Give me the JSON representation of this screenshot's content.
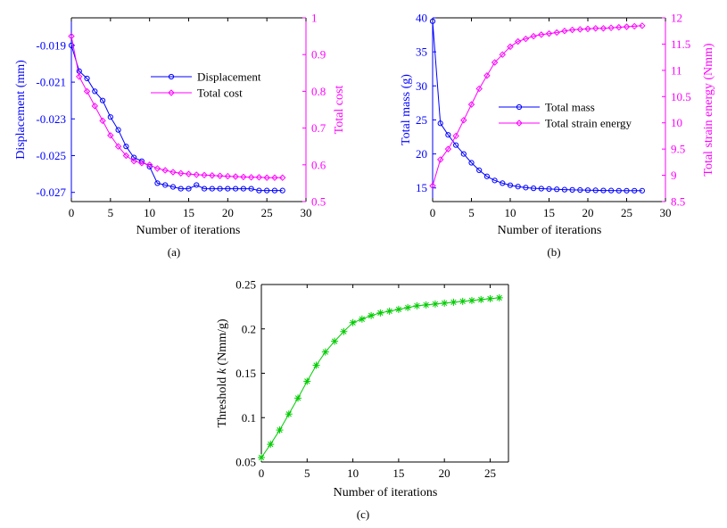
{
  "chart_data": [
    {
      "type": "line",
      "caption": "(a)",
      "xlabel": "Number of iterations",
      "xlim": [
        0,
        30
      ],
      "xticks": [
        0,
        5,
        10,
        15,
        20,
        25,
        30
      ],
      "left_axis": {
        "label": "Displacement (mm)",
        "color": "#0000ff",
        "lim": [
          -0.0275,
          -0.0175
        ],
        "ticks": [
          -0.019,
          -0.021,
          -0.023,
          -0.025,
          -0.027
        ],
        "tick_labels": [
          "-0.019",
          "-0.021",
          "-0.023",
          "-0.025",
          "-0.027"
        ]
      },
      "right_axis": {
        "label": "Total cost",
        "color": "#ff00ff",
        "lim": [
          0.5,
          1.0
        ],
        "ticks": [
          0.5,
          0.6,
          0.7,
          0.8,
          0.9,
          1.0
        ],
        "tick_labels": [
          "0.5",
          "0.6",
          "0.7",
          "0.8",
          "0.9",
          "1"
        ]
      },
      "legend": [
        "Displacement",
        "Total cost"
      ],
      "legend_position": "center-right",
      "series": [
        {
          "name": "Displacement",
          "axis": "left",
          "color": "#0000ff",
          "marker": "circle",
          "x": [
            0,
            1,
            2,
            3,
            4,
            5,
            6,
            7,
            8,
            9,
            10,
            11,
            12,
            13,
            14,
            15,
            16,
            17,
            18,
            19,
            20,
            21,
            22,
            23,
            24,
            25,
            26,
            27
          ],
          "values": [
            -0.019,
            -0.0204,
            -0.0208,
            -0.0215,
            -0.022,
            -0.0229,
            -0.0236,
            -0.0245,
            -0.0251,
            -0.0253,
            -0.0256,
            -0.0265,
            -0.0266,
            -0.0267,
            -0.0268,
            -0.0268,
            -0.0266,
            -0.0268,
            -0.0268,
            -0.0268,
            -0.0268,
            -0.0268,
            -0.0268,
            -0.0268,
            -0.0269,
            -0.0269,
            -0.0269,
            -0.0269
          ]
        },
        {
          "name": "Total cost",
          "axis": "right",
          "color": "#ff00ff",
          "marker": "diamond",
          "x": [
            0,
            1,
            2,
            3,
            4,
            5,
            6,
            7,
            8,
            9,
            10,
            11,
            12,
            13,
            14,
            15,
            16,
            17,
            18,
            19,
            20,
            21,
            22,
            23,
            24,
            25,
            26,
            27
          ],
          "values": [
            0.95,
            0.84,
            0.8,
            0.76,
            0.72,
            0.68,
            0.65,
            0.625,
            0.61,
            0.605,
            0.6,
            0.59,
            0.585,
            0.58,
            0.577,
            0.575,
            0.573,
            0.572,
            0.571,
            0.57,
            0.569,
            0.568,
            0.567,
            0.566,
            0.566,
            0.565,
            0.565,
            0.565
          ]
        }
      ]
    },
    {
      "type": "line",
      "caption": "(b)",
      "xlabel": "Number of iterations",
      "xlim": [
        0,
        30
      ],
      "xticks": [
        0,
        5,
        10,
        15,
        20,
        25,
        30
      ],
      "left_axis": {
        "label": "Total mass (g)",
        "color": "#0000ff",
        "lim": [
          13,
          40
        ],
        "ticks": [
          15,
          20,
          25,
          30,
          35,
          40
        ],
        "tick_labels": [
          "15",
          "20",
          "25",
          "30",
          "35",
          "40"
        ]
      },
      "right_axis": {
        "label": "Total strain energy (Nmm)",
        "color": "#ff00ff",
        "lim": [
          8.5,
          12
        ],
        "ticks": [
          8.5,
          9,
          9.5,
          10,
          10.5,
          11,
          11.5,
          12
        ],
        "tick_labels": [
          "8.5",
          "9",
          "9.5",
          "10",
          "10.5",
          "11",
          "11.5",
          "12"
        ]
      },
      "legend": [
        "Total mass",
        "Total strain energy"
      ],
      "legend_position": "center-right",
      "series": [
        {
          "name": "Total mass",
          "axis": "left",
          "color": "#0000ff",
          "marker": "circle",
          "x": [
            0,
            1,
            2,
            3,
            4,
            5,
            6,
            7,
            8,
            9,
            10,
            11,
            12,
            13,
            14,
            15,
            16,
            17,
            18,
            19,
            20,
            21,
            22,
            23,
            24,
            25,
            26,
            27
          ],
          "values": [
            39.5,
            24.5,
            22.8,
            21.3,
            20.0,
            18.7,
            17.6,
            16.7,
            16.1,
            15.7,
            15.4,
            15.2,
            15.05,
            14.95,
            14.9,
            14.85,
            14.8,
            14.75,
            14.72,
            14.7,
            14.68,
            14.65,
            14.63,
            14.62,
            14.6,
            14.6,
            14.6,
            14.6
          ]
        },
        {
          "name": "Total strain energy",
          "axis": "right",
          "color": "#ff00ff",
          "marker": "diamond",
          "x": [
            0,
            1,
            2,
            3,
            4,
            5,
            6,
            7,
            8,
            9,
            10,
            11,
            12,
            13,
            14,
            15,
            16,
            17,
            18,
            19,
            20,
            21,
            22,
            23,
            24,
            25,
            26,
            27
          ],
          "values": [
            8.8,
            9.3,
            9.5,
            9.75,
            10.05,
            10.35,
            10.65,
            10.9,
            11.15,
            11.3,
            11.45,
            11.55,
            11.6,
            11.65,
            11.68,
            11.7,
            11.72,
            11.75,
            11.77,
            11.78,
            11.79,
            11.8,
            11.8,
            11.81,
            11.82,
            11.83,
            11.84,
            11.85
          ]
        }
      ]
    },
    {
      "type": "line",
      "caption": "(c)",
      "xlabel": "Number of iterations",
      "xlim": [
        0,
        27
      ],
      "xticks": [
        0,
        5,
        10,
        15,
        20,
        25
      ],
      "left_axis": {
        "label_prefix": "Threshold ",
        "label_var": "k",
        "label_suffix": " (Nmm/g)",
        "color": "#000000",
        "lim": [
          0.05,
          0.25
        ],
        "ticks": [
          0.05,
          0.1,
          0.15,
          0.2,
          0.25
        ],
        "tick_labels": [
          "0.05",
          "0.1",
          "0.15",
          "0.2",
          "0.25"
        ]
      },
      "series": [
        {
          "name": "Threshold k",
          "axis": "left",
          "color": "#00cc00",
          "marker": "asterisk",
          "x": [
            0,
            1,
            2,
            3,
            4,
            5,
            6,
            7,
            8,
            9,
            10,
            11,
            12,
            13,
            14,
            15,
            16,
            17,
            18,
            19,
            20,
            21,
            22,
            23,
            24,
            25,
            26
          ],
          "values": [
            0.055,
            0.07,
            0.086,
            0.104,
            0.122,
            0.141,
            0.159,
            0.174,
            0.186,
            0.197,
            0.207,
            0.211,
            0.215,
            0.218,
            0.22,
            0.222,
            0.224,
            0.226,
            0.227,
            0.228,
            0.229,
            0.23,
            0.231,
            0.232,
            0.233,
            0.234,
            0.235
          ]
        }
      ]
    }
  ]
}
